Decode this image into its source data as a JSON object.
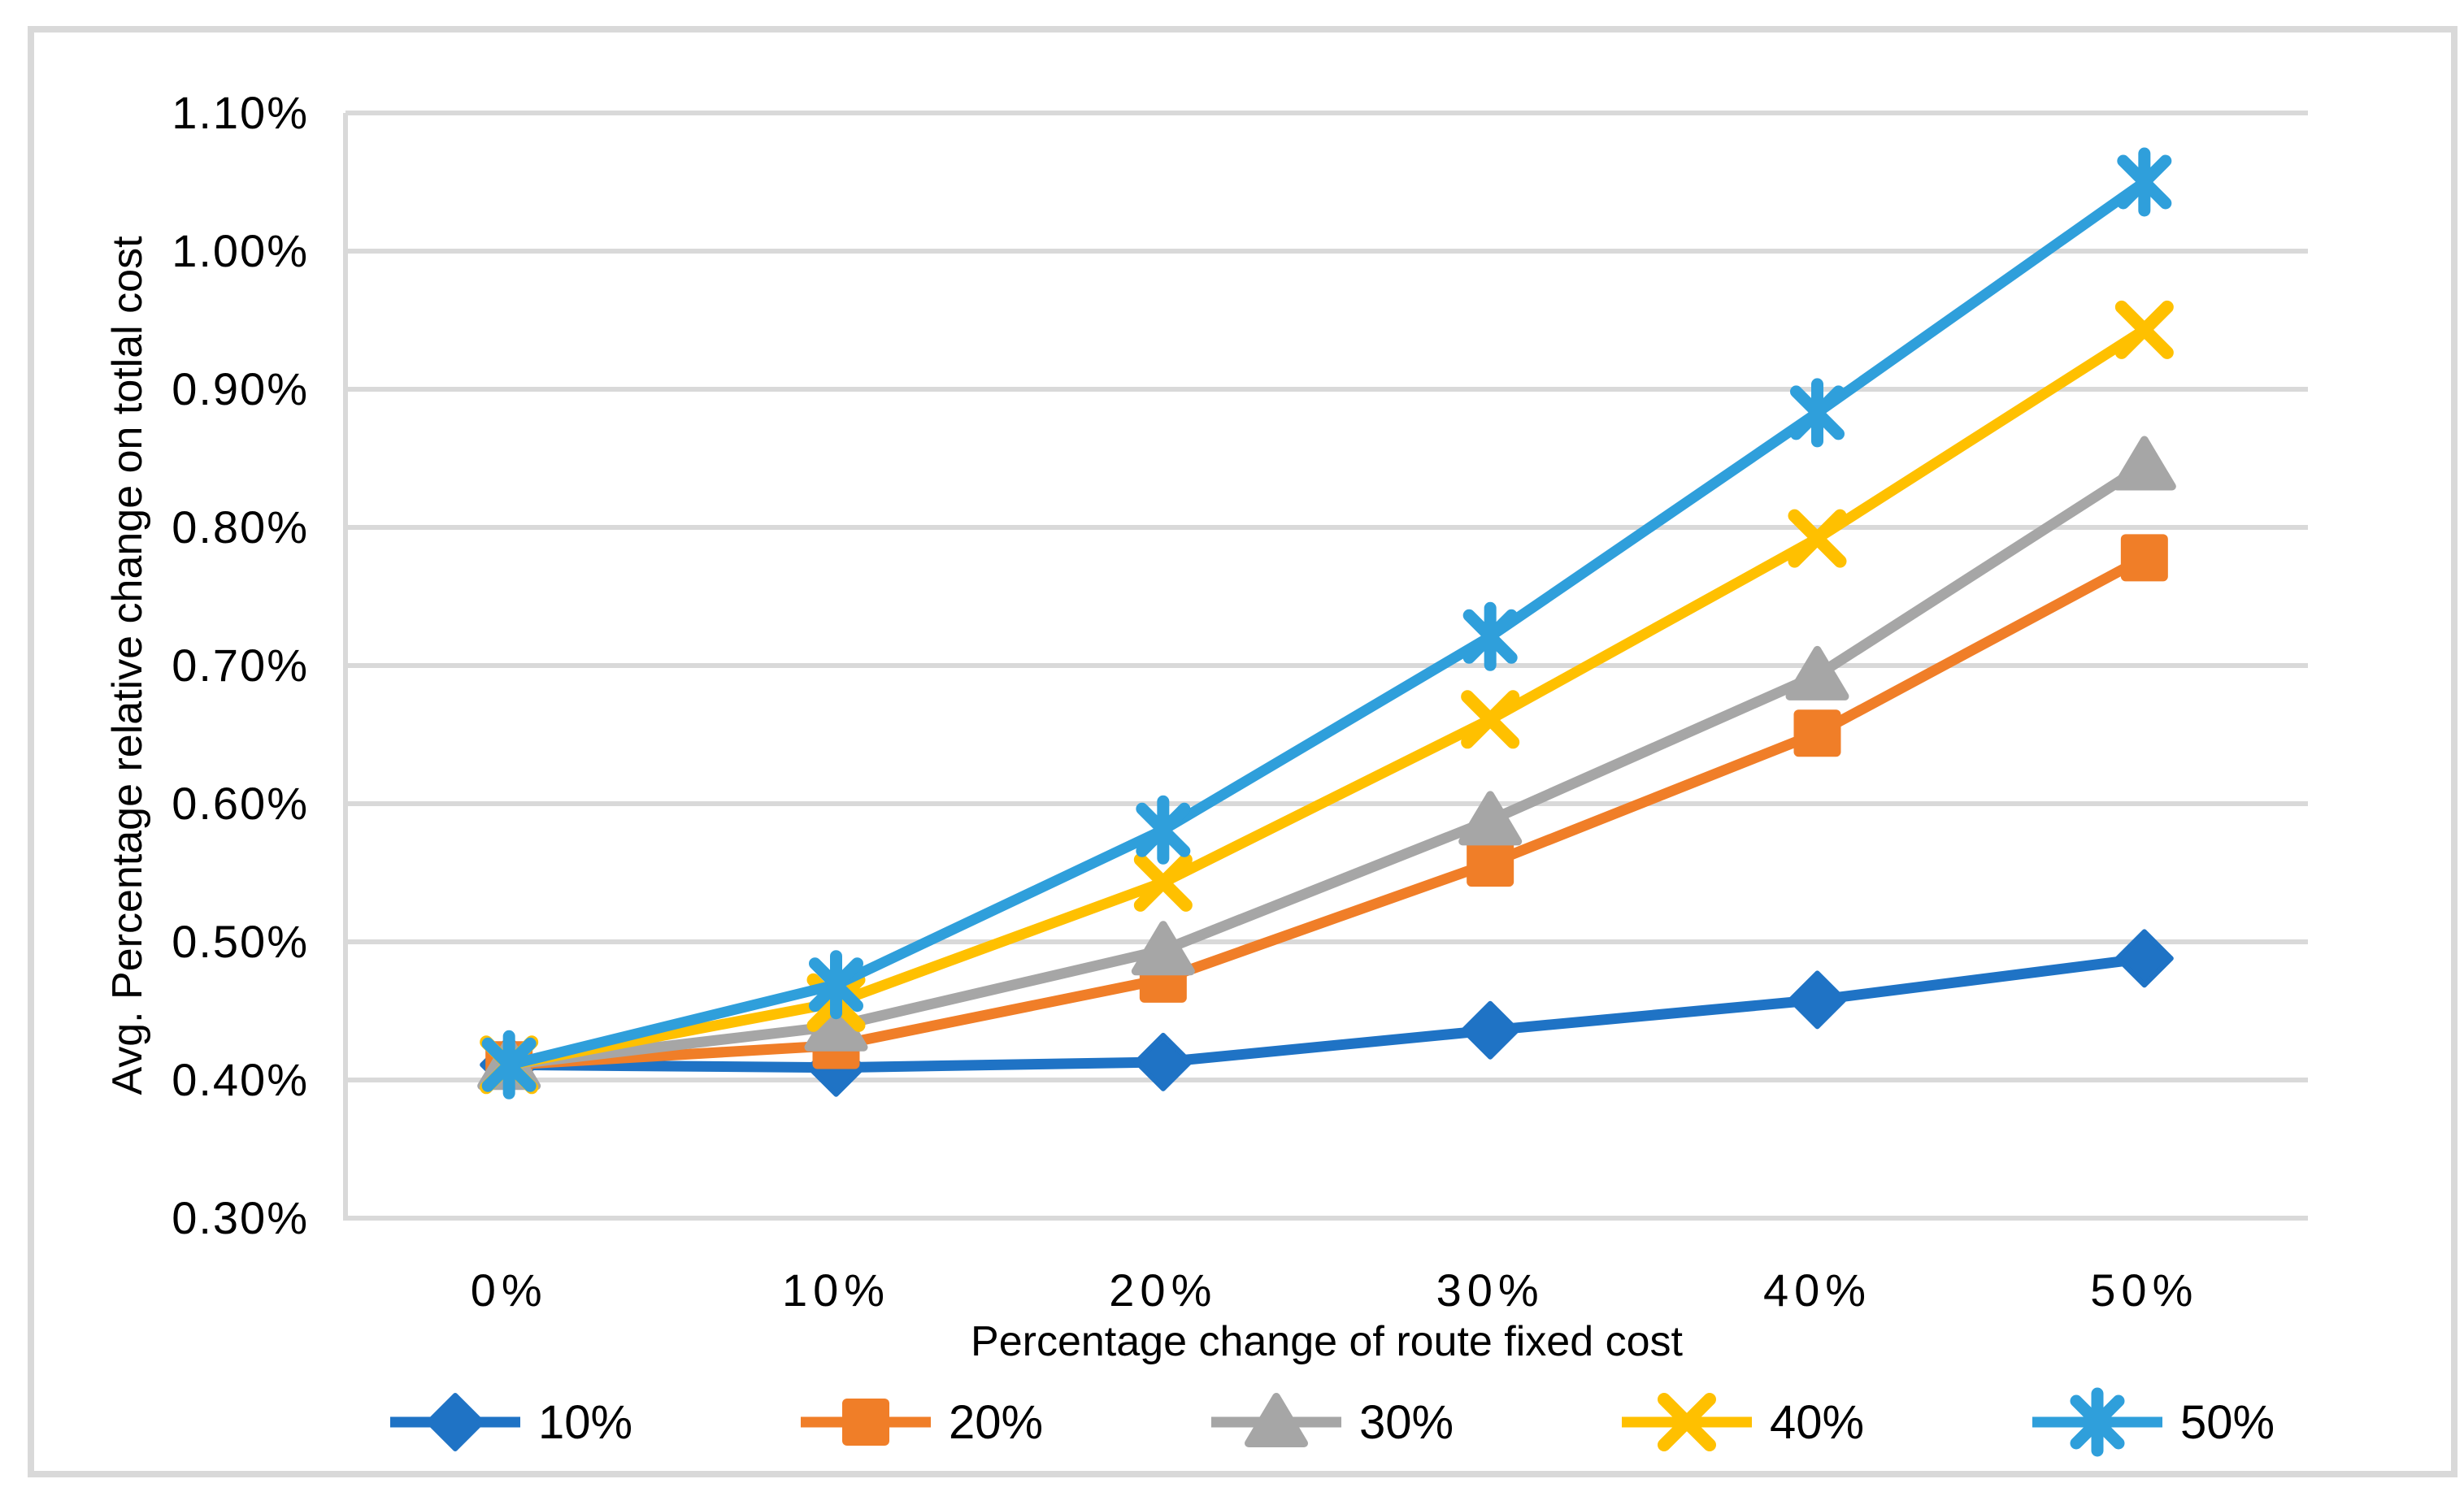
{
  "frame": {
    "border_color": "#d9d9d9",
    "background": "#ffffff"
  },
  "chart_data": {
    "type": "line",
    "title": "",
    "xlabel": "Percentage change of route fixed cost",
    "ylabel": "Avg. Percentage relative change on totlal cost",
    "categories": [
      "0%",
      "10%",
      "20%",
      "30%",
      "40%",
      "50%"
    ],
    "ylim": [
      0.3,
      1.1
    ],
    "y_tick_step": 0.1,
    "y_tick_format": "0.00%",
    "grid": "horizontal",
    "gridline_color": "#d9d9d9",
    "axis_line_color": "#d9d9d9",
    "legend_position": "bottom",
    "series": [
      {
        "name": "10%",
        "marker": "diamond",
        "color": "#1f73c5",
        "values": [
          0.411,
          0.409,
          0.413,
          0.436,
          0.458,
          0.488
        ]
      },
      {
        "name": "20%",
        "marker": "square",
        "color": "#f07e28",
        "values": [
          0.411,
          0.425,
          0.473,
          0.557,
          0.651,
          0.778
        ]
      },
      {
        "name": "30%",
        "marker": "triangle",
        "color": "#a6a6a6",
        "values": [
          0.411,
          0.439,
          0.494,
          0.588,
          0.693,
          0.845
        ]
      },
      {
        "name": "40%",
        "marker": "x",
        "color": "#ffc000",
        "values": [
          0.411,
          0.456,
          0.543,
          0.661,
          0.792,
          0.943
        ]
      },
      {
        "name": "50%",
        "marker": "asterisk",
        "color": "#2f9fdb",
        "values": [
          0.411,
          0.469,
          0.581,
          0.721,
          0.883,
          1.05
        ]
      }
    ]
  }
}
